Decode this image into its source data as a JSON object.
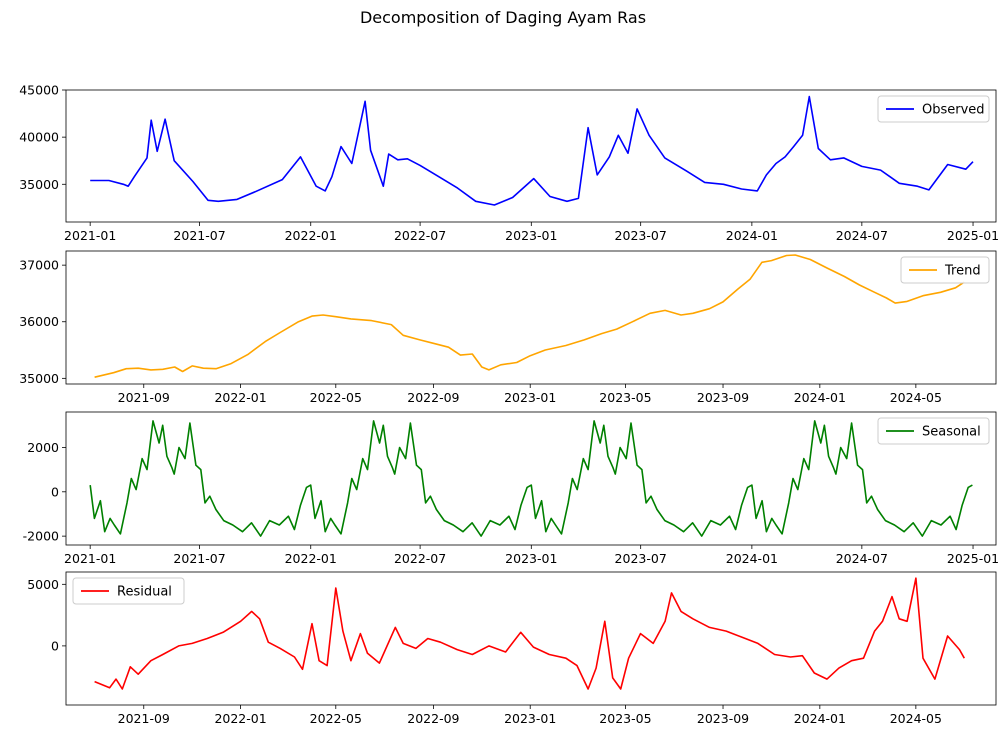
{
  "figure": {
    "title": "Decomposition of Daging Ayam Ras"
  },
  "chart_data": [
    {
      "type": "line",
      "name": "observed",
      "legend": "Observed",
      "color": "#0000ff",
      "legend_position": "top-right",
      "x_range": [
        "2020-11-22",
        "2025-02-08"
      ],
      "ylim": [
        31000,
        45000
      ],
      "yticks": [
        35000,
        40000,
        45000
      ],
      "xticks": [
        "2021-01",
        "2021-07",
        "2022-01",
        "2022-07",
        "2023-01",
        "2023-07",
        "2024-01",
        "2024-07",
        "2025-01"
      ],
      "x": [
        "2021-01-01",
        "2021-02-01",
        "2021-02-25",
        "2021-03-05",
        "2021-03-15",
        "2021-04-05",
        "2021-04-12",
        "2021-04-22",
        "2021-05-05",
        "2021-05-20",
        "2021-06-20",
        "2021-07-15",
        "2021-08-01",
        "2021-09-01",
        "2021-10-01",
        "2021-11-15",
        "2021-12-15",
        "2022-01-10",
        "2022-01-25",
        "2022-02-05",
        "2022-02-20",
        "2022-03-10",
        "2022-04-01",
        "2022-04-10",
        "2022-05-01",
        "2022-05-10",
        "2022-05-25",
        "2022-06-10",
        "2022-07-01",
        "2022-08-01",
        "2022-09-01",
        "2022-10-01",
        "2022-11-01",
        "2022-12-01",
        "2023-01-05",
        "2023-02-01",
        "2023-03-01",
        "2023-03-20",
        "2023-04-05",
        "2023-04-20",
        "2023-05-10",
        "2023-05-25",
        "2023-06-10",
        "2023-06-25",
        "2023-07-15",
        "2023-08-10",
        "2023-09-15",
        "2023-10-15",
        "2023-11-15",
        "2023-12-15",
        "2024-01-10",
        "2024-01-25",
        "2024-02-10",
        "2024-02-25",
        "2024-03-10",
        "2024-03-25",
        "2024-04-05",
        "2024-04-20",
        "2024-05-10",
        "2024-06-01",
        "2024-07-01",
        "2024-08-01",
        "2024-09-01",
        "2024-10-01",
        "2024-10-20",
        "2024-11-20",
        "2024-12-20",
        "2025-01-01"
      ],
      "y": [
        35400,
        35400,
        35000,
        34800,
        35800,
        37800,
        41800,
        38500,
        41900,
        37500,
        35300,
        33300,
        33200,
        33400,
        34200,
        35500,
        37900,
        34800,
        34300,
        35800,
        39000,
        37200,
        43800,
        38600,
        34800,
        38200,
        37600,
        37700,
        37000,
        35800,
        34600,
        33200,
        32800,
        33600,
        35600,
        33700,
        33200,
        33500,
        41000,
        36000,
        37900,
        40200,
        38300,
        43000,
        40200,
        37800,
        36400,
        35200,
        35000,
        34500,
        34300,
        36000,
        37200,
        37900,
        39000,
        40200,
        44300,
        38800,
        37600,
        37800,
        36900,
        36500,
        35100,
        34800,
        34400,
        37100,
        36600,
        37400
      ]
    },
    {
      "type": "line",
      "name": "trend",
      "legend": "Trend",
      "color": "#ffa500",
      "legend_position": "top-right",
      "x_range": [
        "2021-05-26",
        "2024-08-10"
      ],
      "ylim": [
        34900,
        37250
      ],
      "yticks": [
        35000,
        36000,
        37000
      ],
      "xticks": [
        "2021-09",
        "2022-01",
        "2022-05",
        "2022-09",
        "2023-01",
        "2023-05",
        "2023-09",
        "2024-01",
        "2024-05"
      ],
      "x": [
        "2021-07-01",
        "2021-07-25",
        "2021-08-10",
        "2021-08-25",
        "2021-09-10",
        "2021-09-25",
        "2021-10-10",
        "2021-10-20",
        "2021-11-01",
        "2021-11-15",
        "2021-12-01",
        "2021-12-20",
        "2022-01-10",
        "2022-02-01",
        "2022-02-20",
        "2022-03-15",
        "2022-04-01",
        "2022-04-15",
        "2022-05-01",
        "2022-05-20",
        "2022-06-15",
        "2022-07-10",
        "2022-07-25",
        "2022-08-15",
        "2022-09-01",
        "2022-09-20",
        "2022-10-05",
        "2022-10-20",
        "2022-11-01",
        "2022-11-10",
        "2022-11-25",
        "2022-12-15",
        "2023-01-01",
        "2023-01-20",
        "2023-02-15",
        "2023-03-10",
        "2023-04-01",
        "2023-04-20",
        "2023-05-10",
        "2023-06-01",
        "2023-06-20",
        "2023-07-10",
        "2023-07-25",
        "2023-08-15",
        "2023-09-01",
        "2023-09-20",
        "2023-10-05",
        "2023-10-20",
        "2023-11-01",
        "2023-11-20",
        "2023-12-01",
        "2023-12-20",
        "2024-01-10",
        "2024-02-01",
        "2024-02-20",
        "2024-03-10",
        "2024-03-25",
        "2024-04-05",
        "2024-04-20",
        "2024-05-10",
        "2024-06-01",
        "2024-06-20",
        "2024-07-01"
      ],
      "y": [
        35020,
        35100,
        35170,
        35180,
        35150,
        35160,
        35200,
        35120,
        35220,
        35180,
        35170,
        35260,
        35420,
        35650,
        35810,
        36000,
        36100,
        36120,
        36090,
        36050,
        36020,
        35950,
        35760,
        35680,
        35620,
        35550,
        35410,
        35430,
        35200,
        35150,
        35240,
        35280,
        35400,
        35500,
        35580,
        35680,
        35790,
        35870,
        36000,
        36150,
        36200,
        36120,
        36150,
        36230,
        36350,
        36580,
        36750,
        37050,
        37080,
        37170,
        37180,
        37100,
        36950,
        36800,
        36650,
        36520,
        36420,
        36330,
        36360,
        36460,
        36520,
        36600,
        36700
      ]
    },
    {
      "type": "line",
      "name": "seasonal",
      "legend": "Seasonal",
      "color": "#008000",
      "legend_position": "top-right",
      "x_range": [
        "2020-11-22",
        "2025-02-08"
      ],
      "ylim": [
        -2400,
        3600
      ],
      "yticks": [
        -2000,
        0,
        2000
      ],
      "xticks": [
        "2021-01",
        "2021-07",
        "2022-01",
        "2022-07",
        "2023-01",
        "2023-07",
        "2024-01",
        "2024-07",
        "2025-01"
      ],
      "cycle_x": [
        "2021-01-01",
        "2021-01-08",
        "2021-01-18",
        "2021-01-25",
        "2021-02-03",
        "2021-02-10",
        "2021-02-20",
        "2021-03-03",
        "2021-03-10",
        "2021-03-18",
        "2021-03-28",
        "2021-04-05",
        "2021-04-15",
        "2021-04-25",
        "2021-05-01",
        "2021-05-08",
        "2021-05-16",
        "2021-05-20",
        "2021-05-28",
        "2021-06-07",
        "2021-06-15",
        "2021-06-25",
        "2021-07-03",
        "2021-07-10",
        "2021-07-18",
        "2021-07-28",
        "2021-08-10",
        "2021-08-25",
        "2021-09-10",
        "2021-09-25",
        "2021-10-10",
        "2021-10-25",
        "2021-11-10",
        "2021-11-25",
        "2021-12-05",
        "2021-12-15",
        "2021-12-25",
        "2022-01-01"
      ],
      "cycle_y": [
        300,
        -1200,
        -400,
        -1800,
        -1200,
        -1500,
        -1900,
        -500,
        600,
        100,
        1500,
        1000,
        3200,
        2200,
        3000,
        1600,
        1100,
        800,
        2000,
        1500,
        3100,
        1200,
        1000,
        -500,
        -200,
        -800,
        -1300,
        -1500,
        -1800,
        -1400,
        -2000,
        -1300,
        -1500,
        -1100,
        -1700,
        -600,
        200,
        300
      ],
      "cycles": 4
    },
    {
      "type": "line",
      "name": "residual",
      "legend": "Residual",
      "color": "#ff0000",
      "legend_position": "top-left",
      "x_range": [
        "2021-05-26",
        "2024-08-10"
      ],
      "ylim": [
        -4800,
        6000
      ],
      "yticks": [
        0,
        5000
      ],
      "xticks": [
        "2021-09",
        "2022-01",
        "2022-05",
        "2022-09",
        "2023-01",
        "2023-05",
        "2023-09",
        "2024-01",
        "2024-05"
      ],
      "x": [
        "2021-07-01",
        "2021-07-20",
        "2021-07-28",
        "2021-08-05",
        "2021-08-15",
        "2021-08-25",
        "2021-09-10",
        "2021-09-25",
        "2021-10-15",
        "2021-11-01",
        "2021-11-20",
        "2021-12-10",
        "2022-01-01",
        "2022-01-15",
        "2022-01-25",
        "2022-02-05",
        "2022-02-20",
        "2022-03-10",
        "2022-03-20",
        "2022-04-01",
        "2022-04-10",
        "2022-04-20",
        "2022-05-01",
        "2022-05-10",
        "2022-05-20",
        "2022-06-01",
        "2022-06-10",
        "2022-06-25",
        "2022-07-15",
        "2022-07-25",
        "2022-08-10",
        "2022-08-25",
        "2022-09-10",
        "2022-10-01",
        "2022-10-20",
        "2022-11-10",
        "2022-12-01",
        "2022-12-20",
        "2023-01-05",
        "2023-01-25",
        "2023-02-15",
        "2023-03-01",
        "2023-03-15",
        "2023-03-25",
        "2023-04-05",
        "2023-04-15",
        "2023-04-25",
        "2023-05-05",
        "2023-05-20",
        "2023-06-05",
        "2023-06-20",
        "2023-06-28",
        "2023-07-10",
        "2023-07-25",
        "2023-08-15",
        "2023-09-05",
        "2023-09-25",
        "2023-10-15",
        "2023-11-05",
        "2023-11-25",
        "2023-12-10",
        "2023-12-25",
        "2024-01-10",
        "2024-01-25",
        "2024-02-10",
        "2024-02-25",
        "2024-03-10",
        "2024-03-20",
        "2024-04-01",
        "2024-04-10",
        "2024-04-20",
        "2024-05-01",
        "2024-05-10",
        "2024-05-25",
        "2024-06-10",
        "2024-06-25",
        "2024-07-01"
      ],
      "y": [
        -2900,
        -3400,
        -2700,
        -3500,
        -1700,
        -2300,
        -1200,
        -700,
        0,
        200,
        600,
        1100,
        2000,
        2800,
        2200,
        300,
        -200,
        -900,
        -1900,
        1800,
        -1200,
        -1600,
        4700,
        1200,
        -1200,
        1000,
        -600,
        -1400,
        1500,
        200,
        -200,
        600,
        300,
        -300,
        -700,
        0,
        -500,
        1100,
        -100,
        -700,
        -1000,
        -1600,
        -3500,
        -1800,
        2000,
        -2600,
        -3500,
        -1000,
        1000,
        200,
        2000,
        4300,
        2800,
        2200,
        1500,
        1200,
        700,
        200,
        -700,
        -900,
        -800,
        -2200,
        -2700,
        -1800,
        -1200,
        -1000,
        1200,
        2000,
        4000,
        2200,
        2000,
        5500,
        -1000,
        -2700,
        800,
        -300,
        -1000
      ]
    }
  ]
}
